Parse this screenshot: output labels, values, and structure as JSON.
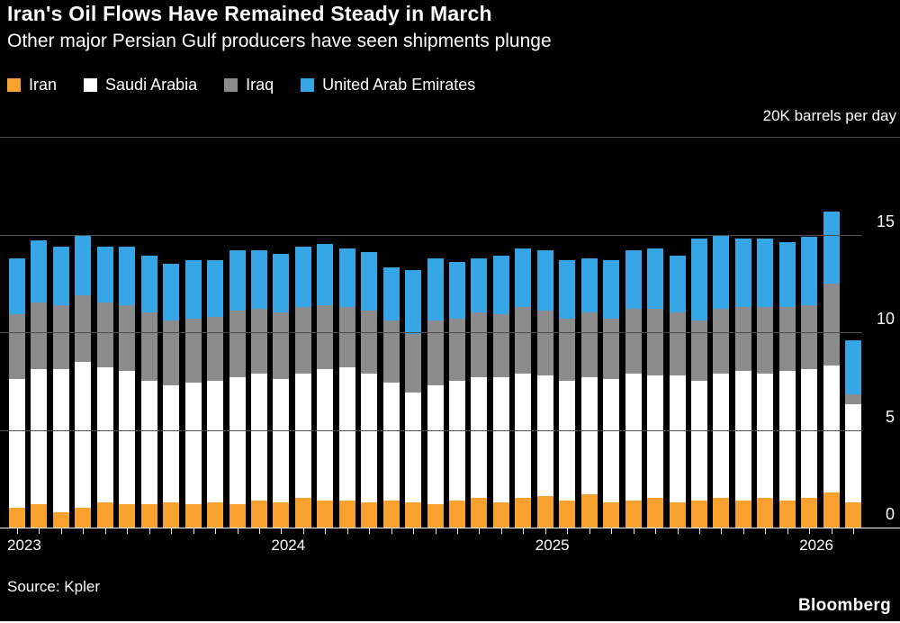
{
  "header": {
    "title": "Iran's Oil Flows Have Remained Steady in March",
    "subtitle": "Other major Persian Gulf producers have seen shipments plunge"
  },
  "legend": [
    {
      "label": "Iran",
      "color": "#f8a12f"
    },
    {
      "label": "Saudi Arabia",
      "color": "#ffffff"
    },
    {
      "label": "Iraq",
      "color": "#8b8b8b"
    },
    {
      "label": "United Arab Emirates",
      "color": "#36a5e5"
    }
  ],
  "axis": {
    "unit_label": "20K barrels per day"
  },
  "footer": {
    "source": "Source: Kpler",
    "brand": "Bloomberg"
  },
  "colors": {
    "background": "#000000",
    "text": "#ffffff",
    "gridline": "#4e4e4e",
    "axis_line": "#ffffff"
  },
  "chart_data": {
    "type": "bar",
    "stacked": true,
    "title": "Iran's Oil Flows Have Remained Steady in March",
    "subtitle": "Other major Persian Gulf producers have seen shipments plunge",
    "unit": "K barrels per day",
    "ylim": [
      0,
      20
    ],
    "yticks": [
      0,
      5,
      10,
      15,
      20
    ],
    "ytick_labels_shown": [
      "0",
      "5",
      "10",
      "15"
    ],
    "top_axis_annotation": "20K barrels per day",
    "grid": "horizontal",
    "legend_position": "top",
    "x": [
      "2023-01",
      "2023-02",
      "2023-03",
      "2023-04",
      "2023-05",
      "2023-06",
      "2023-07",
      "2023-08",
      "2023-09",
      "2023-10",
      "2023-11",
      "2023-12",
      "2024-01",
      "2024-02",
      "2024-03",
      "2024-04",
      "2024-05",
      "2024-06",
      "2024-07",
      "2024-08",
      "2024-09",
      "2024-10",
      "2024-11",
      "2024-12",
      "2025-01",
      "2025-02",
      "2025-03",
      "2025-04",
      "2025-05",
      "2025-06",
      "2025-07",
      "2025-08",
      "2025-09",
      "2025-10",
      "2025-11",
      "2025-12",
      "2026-01",
      "2026-02",
      "2026-03"
    ],
    "xtick_year_labels": [
      "2023",
      "2024",
      "2025",
      "2026"
    ],
    "series": [
      {
        "name": "Iran",
        "color": "#f8a12f",
        "values": [
          1.0,
          1.2,
          0.8,
          1.0,
          1.3,
          1.2,
          1.2,
          1.3,
          1.2,
          1.3,
          1.2,
          1.4,
          1.3,
          1.5,
          1.4,
          1.4,
          1.3,
          1.4,
          1.3,
          1.2,
          1.4,
          1.5,
          1.3,
          1.5,
          1.6,
          1.4,
          1.7,
          1.3,
          1.4,
          1.5,
          1.3,
          1.4,
          1.5,
          1.4,
          1.5,
          1.4,
          1.5,
          1.8,
          1.3
        ]
      },
      {
        "name": "Saudi Arabia",
        "color": "#ffffff",
        "values": [
          6.6,
          6.9,
          7.3,
          7.5,
          6.9,
          6.8,
          6.3,
          6.0,
          6.2,
          6.2,
          6.5,
          6.5,
          6.3,
          6.4,
          6.7,
          6.8,
          6.6,
          6.0,
          5.6,
          6.1,
          6.1,
          6.2,
          6.4,
          6.4,
          6.2,
          6.1,
          6.0,
          6.3,
          6.5,
          6.3,
          6.5,
          6.1,
          6.4,
          6.6,
          6.4,
          6.6,
          6.6,
          6.5,
          5.0
        ]
      },
      {
        "name": "Iraq",
        "color": "#8b8b8b",
        "values": [
          3.3,
          3.4,
          3.3,
          3.4,
          3.3,
          3.4,
          3.5,
          3.3,
          3.3,
          3.3,
          3.4,
          3.3,
          3.4,
          3.4,
          3.3,
          3.1,
          3.2,
          3.2,
          3.0,
          3.3,
          3.2,
          3.3,
          3.2,
          3.4,
          3.3,
          3.2,
          3.3,
          3.1,
          3.3,
          3.4,
          3.2,
          3.1,
          3.3,
          3.3,
          3.4,
          3.3,
          3.3,
          4.2,
          0.5
        ]
      },
      {
        "name": "United Arab Emirates",
        "color": "#36a5e5",
        "values": [
          2.9,
          3.2,
          3.0,
          3.1,
          2.9,
          3.0,
          2.9,
          2.9,
          3.0,
          2.9,
          3.1,
          3.0,
          3.0,
          3.1,
          3.1,
          3.0,
          3.0,
          2.7,
          3.3,
          3.2,
          2.9,
          2.8,
          3.0,
          3.0,
          3.1,
          3.0,
          2.8,
          3.0,
          3.0,
          3.1,
          2.9,
          4.2,
          3.8,
          3.5,
          3.5,
          3.3,
          3.5,
          3.7,
          2.8
        ]
      }
    ]
  }
}
